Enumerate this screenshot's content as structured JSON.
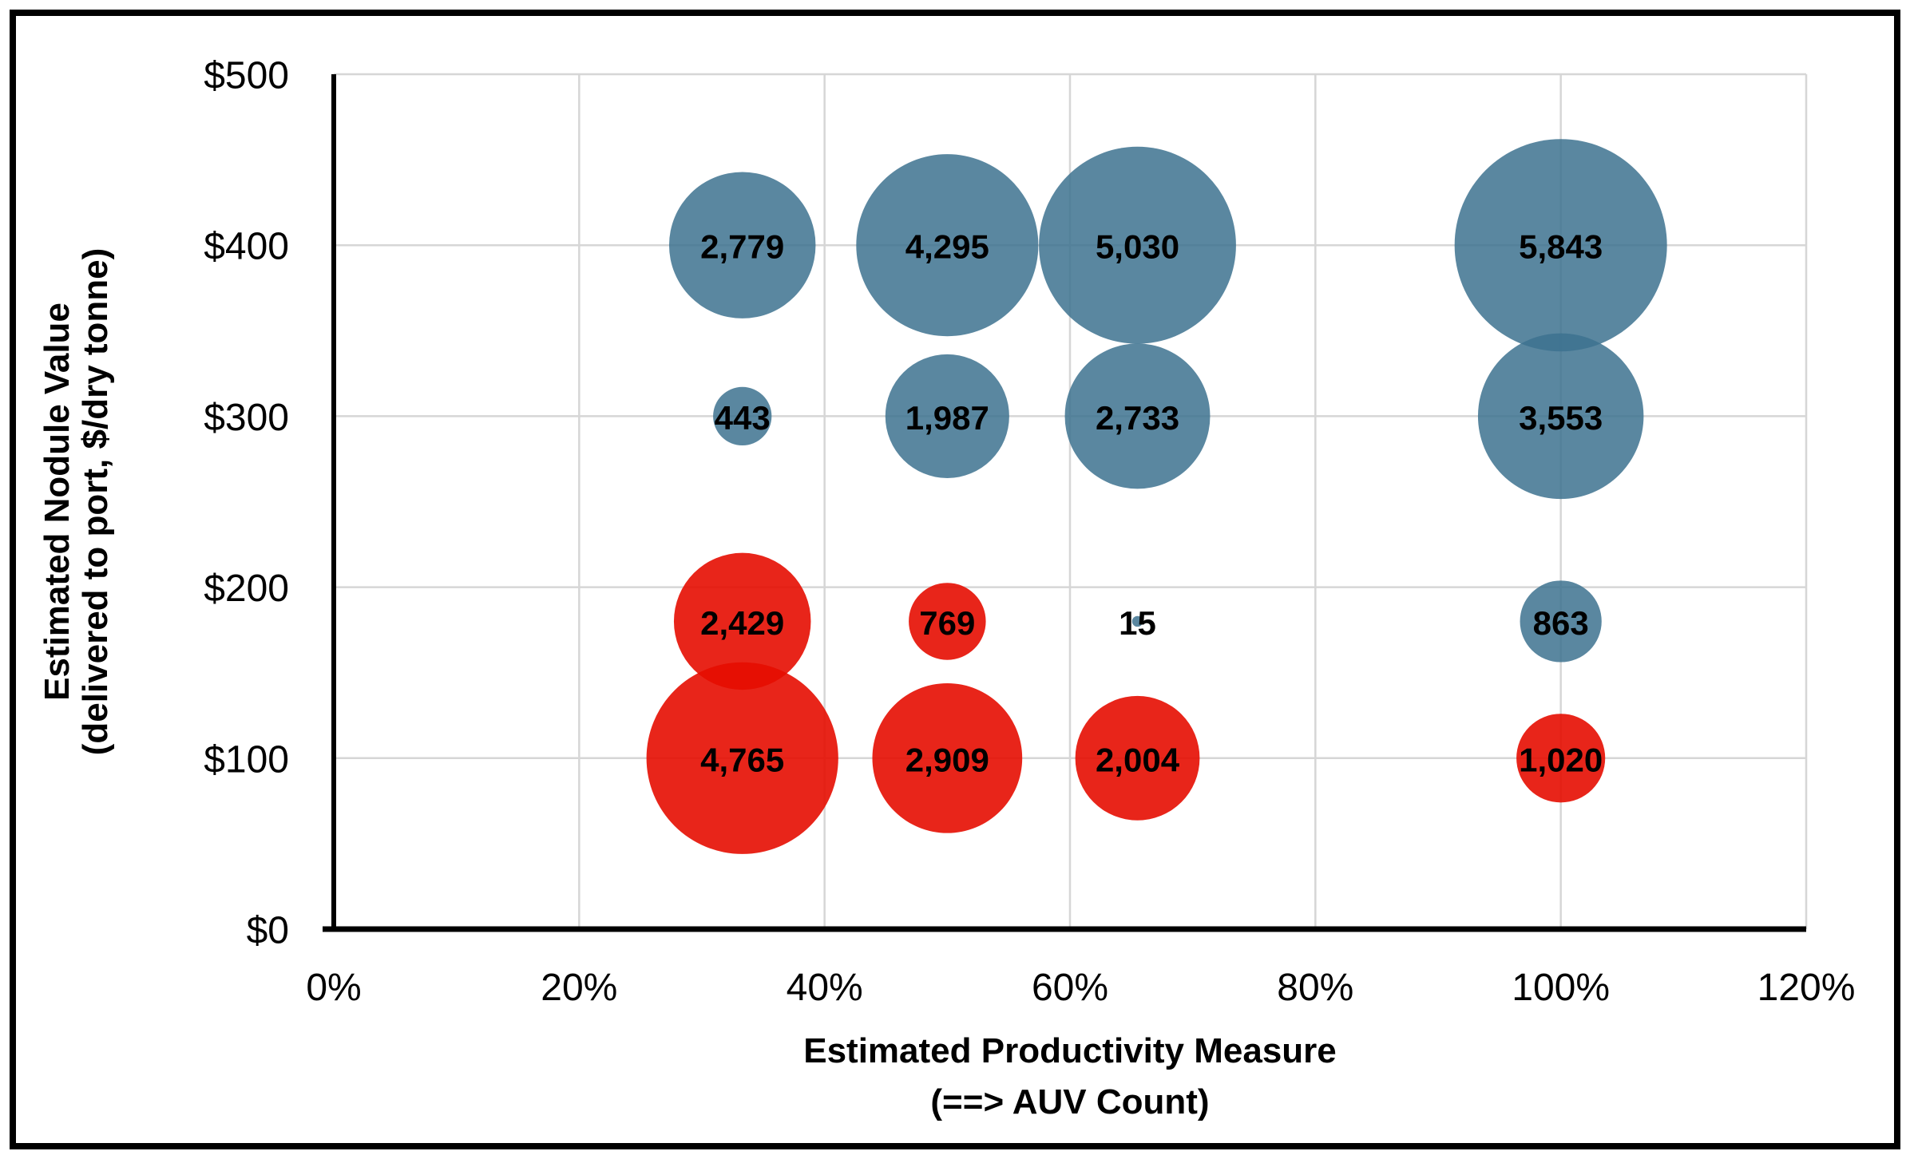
{
  "chart_data": {
    "type": "scatter",
    "subtype": "bubble",
    "title": "",
    "xlabel_lines": [
      "Estimated Productivity Measure",
      "(==> AUV Count)"
    ],
    "ylabel_lines": [
      "Estimated Nodule Value",
      "(delivered to port, $/dry tonne)"
    ],
    "xlim": [
      0,
      120
    ],
    "ylim": [
      0,
      500
    ],
    "grid": true,
    "legend": "none",
    "bubble_sizing": "area proportional to value",
    "colors": {
      "blue_bubble": "#3D728F",
      "red_bubble": "#E50D01",
      "gridline": "#D6D6D6",
      "axis": "#000000",
      "data_label": "#000000",
      "frame": "#000000"
    },
    "x_ticks": [
      {
        "value": 0,
        "label": "0%"
      },
      {
        "value": 20,
        "label": "20%"
      },
      {
        "value": 40,
        "label": "40%"
      },
      {
        "value": 60,
        "label": "60%"
      },
      {
        "value": 80,
        "label": "80%"
      },
      {
        "value": 100,
        "label": "100%"
      },
      {
        "value": 120,
        "label": "120%"
      }
    ],
    "y_ticks": [
      {
        "value": 0,
        "label": "$0"
      },
      {
        "value": 100,
        "label": "$100"
      },
      {
        "value": 200,
        "label": "$200"
      },
      {
        "value": 300,
        "label": "$300"
      },
      {
        "value": 400,
        "label": "$400"
      },
      {
        "value": 500,
        "label": "$500"
      }
    ],
    "series": [
      {
        "name": "blue-bubbles",
        "color": "#3D728F",
        "opacity": 0.85,
        "points": [
          {
            "x": 33.3,
            "y": 400,
            "value": 2779,
            "label": "2,779"
          },
          {
            "x": 50,
            "y": 400,
            "value": 4295,
            "label": "4,295"
          },
          {
            "x": 65.5,
            "y": 400,
            "value": 5030,
            "label": "5,030"
          },
          {
            "x": 100,
            "y": 400,
            "value": 5843,
            "label": "5,843"
          },
          {
            "x": 33.3,
            "y": 300,
            "value": 443,
            "label": "443"
          },
          {
            "x": 50,
            "y": 300,
            "value": 1987,
            "label": "1,987"
          },
          {
            "x": 65.5,
            "y": 300,
            "value": 2733,
            "label": "2,733"
          },
          {
            "x": 100,
            "y": 300,
            "value": 3553,
            "label": "3,553"
          },
          {
            "x": 65.5,
            "y": 180,
            "value": 15,
            "label": "15"
          },
          {
            "x": 100,
            "y": 180,
            "value": 863,
            "label": "863"
          }
        ]
      },
      {
        "name": "red-bubbles",
        "color": "#E50D01",
        "opacity": 0.9,
        "points": [
          {
            "x": 33.3,
            "y": 180,
            "value": 2429,
            "label": "2,429"
          },
          {
            "x": 50,
            "y": 180,
            "value": 769,
            "label": "769"
          },
          {
            "x": 33.3,
            "y": 100,
            "value": 4765,
            "label": "4,765"
          },
          {
            "x": 50,
            "y": 100,
            "value": 2909,
            "label": "2,909"
          },
          {
            "x": 65.5,
            "y": 100,
            "value": 2004,
            "label": "2,004"
          },
          {
            "x": 100,
            "y": 100,
            "value": 1020,
            "label": "1,020"
          }
        ]
      }
    ]
  }
}
